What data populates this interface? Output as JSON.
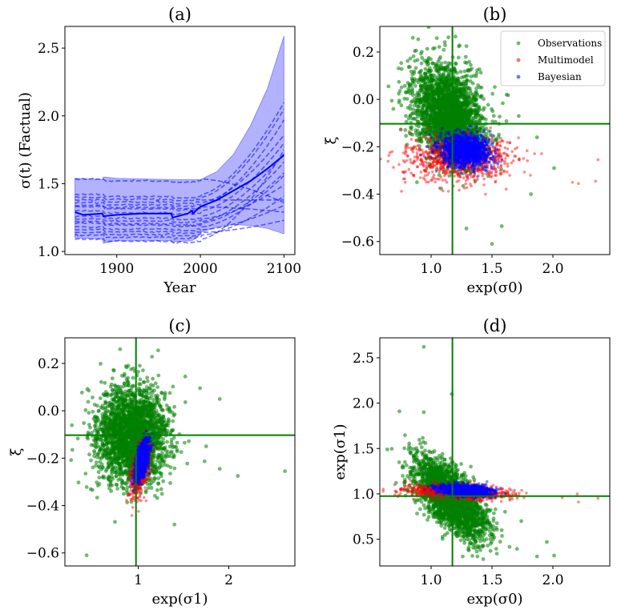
{
  "chart_data": [
    {
      "id": "a",
      "type": "line",
      "title": "(a)",
      "xlabel": "Year",
      "ylabel": "σ(t) (Factual)",
      "xlim": [
        1838,
        2113
      ],
      "ylim": [
        0.977,
        2.66
      ],
      "xticks": [
        1900,
        2000,
        2100
      ],
      "xtick_labels": [
        "1900",
        "2000",
        "2100"
      ],
      "yticks": [
        1.0,
        1.5,
        2.0,
        2.5
      ],
      "ytick_labels": [
        "1.0",
        "1.5",
        "2.0",
        "2.5"
      ],
      "band": {
        "name": "uncertainty band",
        "color": "#0000ff",
        "x": [
          1850,
          1883,
          1884,
          1900,
          1965,
          1966,
          1990,
          1995,
          2000,
          2020,
          2040,
          2060,
          2080,
          2100
        ],
        "upper": [
          1.54,
          1.53,
          1.55,
          1.54,
          1.53,
          1.53,
          1.53,
          1.53,
          1.53,
          1.59,
          1.72,
          1.93,
          2.2,
          2.59
        ],
        "lower": [
          1.1,
          1.09,
          1.06,
          1.08,
          1.08,
          1.07,
          1.08,
          1.1,
          1.14,
          1.18,
          1.2,
          1.19,
          1.17,
          1.13
        ]
      },
      "mean_line": {
        "name": "mean",
        "color": "#0000ff",
        "x": [
          1850,
          1860,
          1883,
          1884,
          1900,
          1930,
          1965,
          1967,
          1985,
          1990,
          1991,
          2000,
          2020,
          2040,
          2060,
          2080,
          2100
        ],
        "y": [
          1.29,
          1.27,
          1.28,
          1.26,
          1.27,
          1.28,
          1.28,
          1.25,
          1.28,
          1.3,
          1.28,
          1.33,
          1.38,
          1.45,
          1.52,
          1.61,
          1.71
        ]
      },
      "member_lines": [
        {
          "start": 1.535,
          "end": 1.36
        },
        {
          "start": 1.42,
          "end": 2.1
        },
        {
          "start": 1.4,
          "end": 2.05
        },
        {
          "start": 1.38,
          "end": 1.38
        },
        {
          "start": 1.36,
          "end": 1.86
        },
        {
          "start": 1.34,
          "end": 1.97
        },
        {
          "start": 1.33,
          "end": 1.29
        },
        {
          "start": 1.3,
          "end": 1.8
        },
        {
          "start": 1.26,
          "end": 1.72
        },
        {
          "start": 1.24,
          "end": 1.49
        },
        {
          "start": 1.22,
          "end": 1.66
        },
        {
          "start": 1.21,
          "end": 1.58
        },
        {
          "start": 1.18,
          "end": 1.56
        },
        {
          "start": 1.16,
          "end": 1.34
        },
        {
          "start": 1.14,
          "end": 1.23
        },
        {
          "start": 1.12,
          "end": 1.41
        },
        {
          "start": 1.09,
          "end": 1.75
        }
      ]
    },
    {
      "id": "b",
      "type": "scatter",
      "title": "(b)",
      "xlabel": "exp(σ0)",
      "ylabel": "ξ",
      "xlim": [
        0.579,
        2.467
      ],
      "ylim": [
        -0.655,
        0.308
      ],
      "xticks": [
        1.0,
        1.5,
        2.0
      ],
      "xtick_labels": [
        "1.0",
        "1.5",
        "2.0"
      ],
      "yticks": [
        0.2,
        0.0,
        -0.2,
        -0.4,
        -0.6
      ],
      "ytick_labels": [
        "0.2",
        "0.0",
        "−0.2",
        "−0.4",
        "−0.6"
      ],
      "hline": -0.103,
      "vline": 1.175,
      "legend": {
        "position": "top-right",
        "entries": [
          {
            "label": "Observations",
            "color": "#008000"
          },
          {
            "label": "Multimodel",
            "color": "#ff0000"
          },
          {
            "label": "Bayesian",
            "color": "#0000ff"
          }
        ]
      },
      "series": [
        {
          "name": "Observations",
          "color": "#008000",
          "n": 2500,
          "mean": [
            1.14,
            -0.06
          ],
          "sd": [
            0.14,
            0.1
          ],
          "corr": -0.25,
          "outliers": [
            [
              0.85,
              0.26
            ],
            [
              1.2,
              0.265
            ],
            [
              1.29,
              0.225
            ],
            [
              0.65,
              0.055
            ],
            [
              0.69,
              -0.04
            ],
            [
              1.5,
              -0.61
            ],
            [
              1.29,
              -0.545
            ],
            [
              1.62,
              0.02
            ],
            [
              1.72,
              -0.07
            ],
            [
              1.82,
              -0.4
            ],
            [
              1.87,
              -0.16
            ],
            [
              2.01,
              -0.29
            ],
            [
              1.58,
              -0.535
            ]
          ]
        },
        {
          "name": "Multimodel",
          "color": "#ff0000",
          "n": 900,
          "mean": [
            1.22,
            -0.25
          ],
          "sd": [
            0.22,
            0.045
          ],
          "corr": 0.0,
          "outliers": [
            [
              2.37,
              -0.255
            ],
            [
              2.35,
              -0.345
            ],
            [
              2.21,
              -0.355
            ],
            [
              2.16,
              -0.35
            ],
            [
              0.68,
              -0.22
            ],
            [
              0.75,
              -0.125
            ]
          ]
        },
        {
          "name": "Bayesian",
          "color": "#0000ff",
          "n": 1500,
          "mean": [
            1.28,
            -0.215
          ],
          "sd": [
            0.1,
            0.035
          ],
          "corr": -0.1,
          "outliers": []
        }
      ]
    },
    {
      "id": "c",
      "type": "scatter",
      "title": "(c)",
      "xlabel": "exp(σ1)",
      "ylabel": "ξ",
      "xlim": [
        0.19,
        2.73
      ],
      "ylim": [
        -0.655,
        0.308
      ],
      "xticks": [
        1,
        2
      ],
      "xtick_labels": [
        "1",
        "2"
      ],
      "yticks": [
        0.2,
        0.0,
        -0.2,
        -0.4,
        -0.6
      ],
      "ytick_labels": [
        "0.2",
        "0.0",
        "−0.2",
        "−0.4",
        "−0.6"
      ],
      "hline": -0.103,
      "vline": 0.975,
      "series": [
        {
          "name": "Observations",
          "color": "#008000",
          "n": 2500,
          "mean": [
            0.93,
            -0.1
          ],
          "sd": [
            0.2,
            0.1
          ],
          "corr": 0.0,
          "outliers": [
            [
              0.8,
              0.26
            ],
            [
              1.22,
              0.255
            ],
            [
              0.43,
              -0.61
            ],
            [
              1.9,
              0.05
            ],
            [
              1.9,
              -0.245
            ],
            [
              2.1,
              -0.275
            ],
            [
              2.62,
              -0.255
            ],
            [
              1.75,
              -0.15
            ],
            [
              1.4,
              -0.48
            ]
          ]
        },
        {
          "name": "Multimodel",
          "color": "#ff0000",
          "n": 700,
          "mean": [
            1.02,
            -0.25
          ],
          "sd": [
            0.05,
            0.055
          ],
          "corr": 0.5,
          "outliers": []
        },
        {
          "name": "Bayesian",
          "color": "#0000ff",
          "n": 1200,
          "mean": [
            1.04,
            -0.21
          ],
          "sd": [
            0.035,
            0.04
          ],
          "corr": 0.55,
          "outliers": []
        }
      ]
    },
    {
      "id": "d",
      "type": "scatter",
      "title": "(d)",
      "xlabel": "exp(σ0)",
      "ylabel": "exp(σ1)",
      "xlim": [
        0.579,
        2.467
      ],
      "ylim": [
        0.205,
        2.72
      ],
      "xticks": [
        1.0,
        1.5,
        2.0
      ],
      "xtick_labels": [
        "1.0",
        "1.5",
        "2.0"
      ],
      "yticks": [
        0.5,
        1.0,
        1.5,
        2.0,
        2.5
      ],
      "ytick_labels": [
        "0.5",
        "1.0",
        "1.5",
        "2.0",
        "2.5"
      ],
      "hline": 0.975,
      "vline": 1.175,
      "series": [
        {
          "name": "Observations",
          "color": "#008000",
          "n": 2500,
          "mean": [
            1.16,
            0.95
          ],
          "sd": [
            0.15,
            0.22
          ],
          "corr": -0.7,
          "outliers": [
            [
              0.94,
              2.62
            ],
            [
              1.17,
              2.1
            ],
            [
              0.74,
              1.91
            ],
            [
              0.94,
              1.9
            ],
            [
              0.64,
              1.49
            ],
            [
              1.87,
              0.31
            ],
            [
              2.01,
              0.32
            ],
            [
              1.95,
              0.47
            ],
            [
              1.74,
              0.7
            ],
            [
              1.26,
              0.31
            ],
            [
              1.38,
              0.31
            ]
          ]
        },
        {
          "name": "Multimodel",
          "color": "#ff0000",
          "n": 900,
          "mean": [
            1.22,
            1.02
          ],
          "sd": [
            0.22,
            0.04
          ],
          "corr": -0.3,
          "outliers": [
            [
              2.37,
              0.95
            ],
            [
              2.21,
              0.91
            ],
            [
              2.2,
              1.0
            ],
            [
              0.75,
              1.05
            ],
            [
              0.7,
              1.1
            ]
          ]
        },
        {
          "name": "Bayesian",
          "color": "#0000ff",
          "n": 1500,
          "mean": [
            1.28,
            1.04
          ],
          "sd": [
            0.1,
            0.03
          ],
          "corr": -0.3,
          "outliers": []
        }
      ]
    }
  ]
}
